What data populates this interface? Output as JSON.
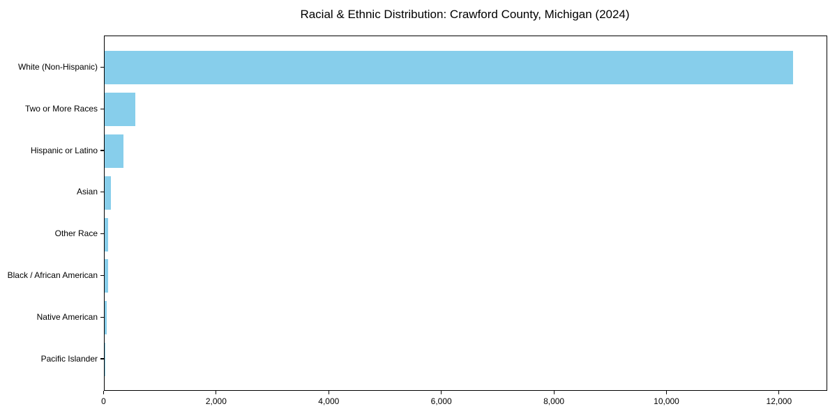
{
  "figure": {
    "background_color": "#ffffff",
    "text_color": "#000000",
    "spine_color": "#000000"
  },
  "chart_data": {
    "type": "bar",
    "orientation": "horizontal",
    "title": "Racial & Ethnic Distribution: Crawford County, Michigan (2024)",
    "categories": [
      "White (Non-Hispanic)",
      "Two or More Races",
      "Hispanic or Latino",
      "Asian",
      "Other Race",
      "Black / African American",
      "Native American",
      "Pacific Islander"
    ],
    "values": [
      12240,
      555,
      335,
      120,
      70,
      62,
      40,
      5
    ],
    "bar_color": "#87CEEB",
    "xlabel": "",
    "ylabel": "",
    "xlim": [
      0,
      12850
    ],
    "x_ticks": [
      0,
      2000,
      4000,
      6000,
      8000,
      10000,
      12000
    ],
    "x_tick_labels": [
      "0",
      "2,000",
      "4,000",
      "6,000",
      "8,000",
      "10,000",
      "12,000"
    ],
    "grid": false,
    "legend": null
  }
}
